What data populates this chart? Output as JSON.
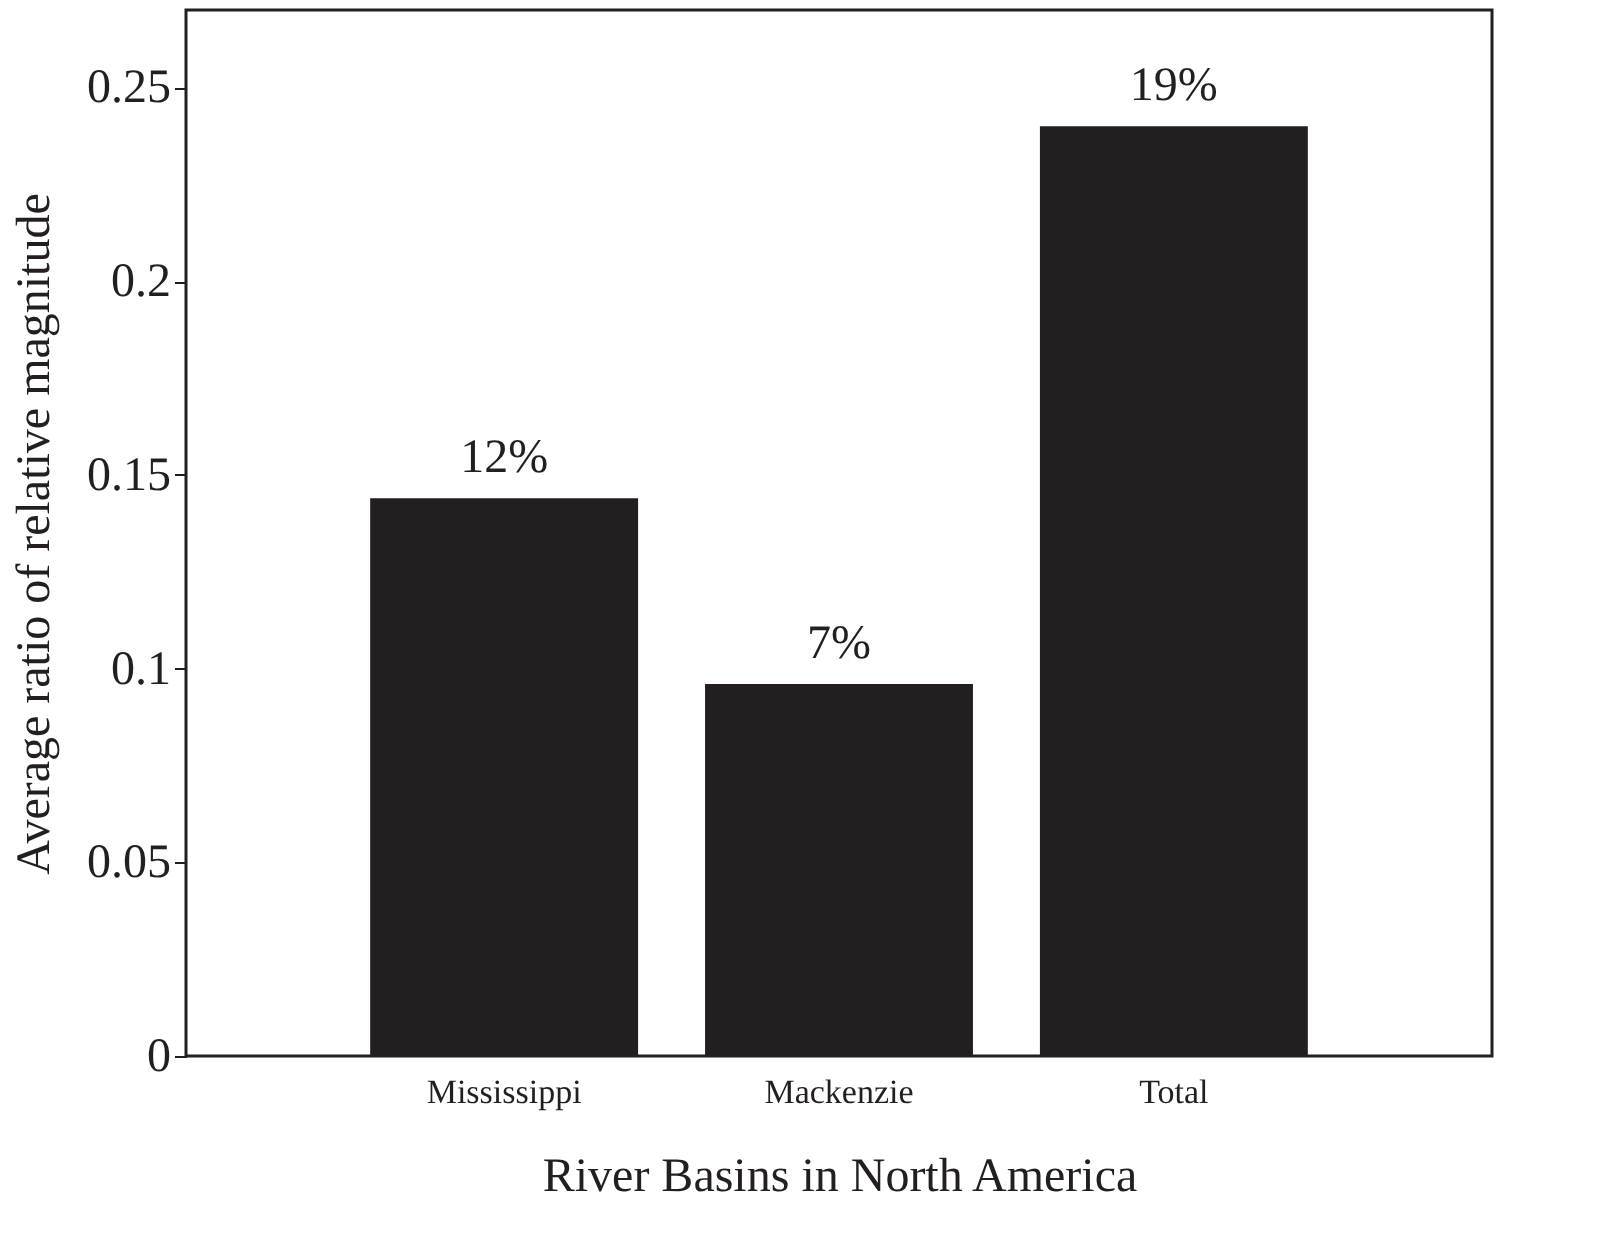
{
  "chart_data": {
    "type": "bar",
    "xlabel": "River Basins in North America",
    "ylabel": "Average ratio of relative magnitude",
    "categories": [
      "Mississippi",
      "Mackenzie",
      "Total"
    ],
    "values": [
      0.144,
      0.096,
      0.24
    ],
    "annotations": [
      {
        "text": "12%",
        "x": "Mississippi",
        "y": 0.144
      },
      {
        "text": "7%",
        "x": "Mackenzie",
        "y": 0.096
      },
      {
        "text": "19%",
        "x": "Total",
        "y": 0.24
      }
    ],
    "color": "#231f20",
    "ylim": [
      0,
      0.27
    ],
    "yticks": [
      0,
      0.05,
      0.1,
      0.15,
      0.2,
      0.25
    ],
    "grid": false
  }
}
